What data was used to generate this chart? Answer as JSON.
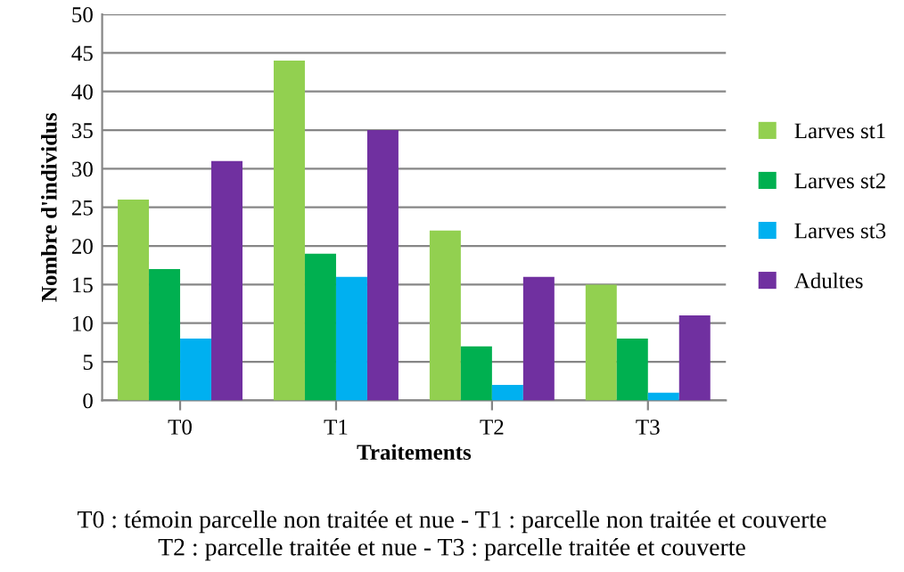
{
  "chart_data": {
    "type": "bar",
    "xlabel": "Traitements",
    "ylabel": "Nombre d'individus",
    "categories": [
      "T0",
      "T1",
      "T2",
      "T3"
    ],
    "series": [
      {
        "name": "Larves st1",
        "color": "#92d050",
        "values": [
          26,
          44,
          22,
          15
        ]
      },
      {
        "name": "Larves st2",
        "color": "#00b050",
        "values": [
          17,
          19,
          7,
          8
        ]
      },
      {
        "name": "Larves st3",
        "color": "#00b0f0",
        "values": [
          8,
          16,
          2,
          1
        ]
      },
      {
        "name": "Adultes",
        "color": "#7030a0",
        "values": [
          31,
          35,
          16,
          11
        ]
      }
    ],
    "ylim": [
      0,
      50
    ],
    "yticks": [
      0,
      5,
      10,
      15,
      20,
      25,
      30,
      35,
      40,
      45,
      50
    ],
    "grid": "y",
    "legend": "right",
    "annotations": [
      "T0 : témoin parcelle non traitée et nue - T1 : parcelle non traitée et couverte\nT2 : parcelle traitée et nue - T3 : parcelle traitée et couverte"
    ]
  }
}
